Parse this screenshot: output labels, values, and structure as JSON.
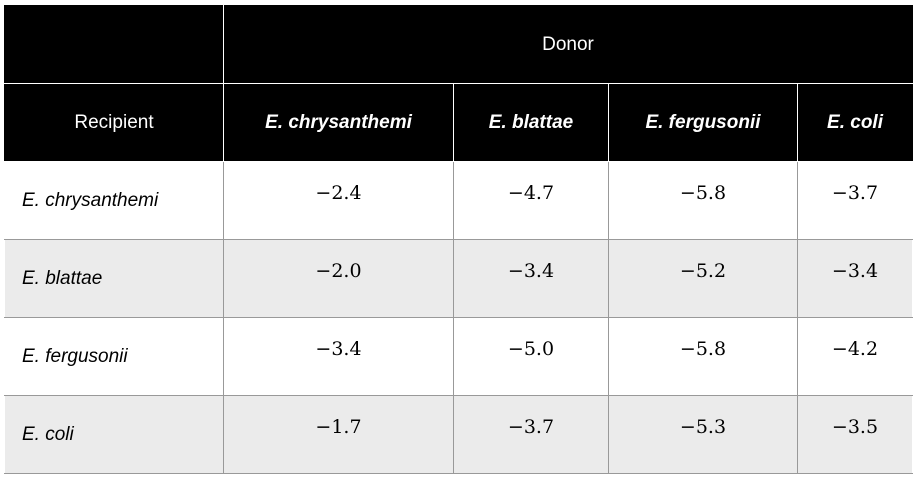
{
  "table": {
    "donor_header": "Donor",
    "recipient_header": "Recipient",
    "columns": [
      "E. chrysanthemi",
      "E. blattae",
      "E. fergusonii",
      "E. coli"
    ],
    "rows": [
      {
        "name": "E. chrysanthemi",
        "values": [
          "−2.4",
          "−4.7",
          "−5.8",
          "−3.7"
        ]
      },
      {
        "name": "E. blattae",
        "values": [
          "−2.0",
          "−3.4",
          "−5.2",
          "−3.4"
        ]
      },
      {
        "name": "E. fergusonii",
        "values": [
          "−3.4",
          "−5.0",
          "−5.8",
          "−4.2"
        ]
      },
      {
        "name": "E. coli",
        "values": [
          "−1.7",
          "−3.7",
          "−5.3",
          "−3.5"
        ]
      }
    ]
  },
  "colors": {
    "header_bg": "#000000",
    "header_text": "#ffffff",
    "alt_row_bg": "#ebebeb",
    "border": "#999999"
  }
}
